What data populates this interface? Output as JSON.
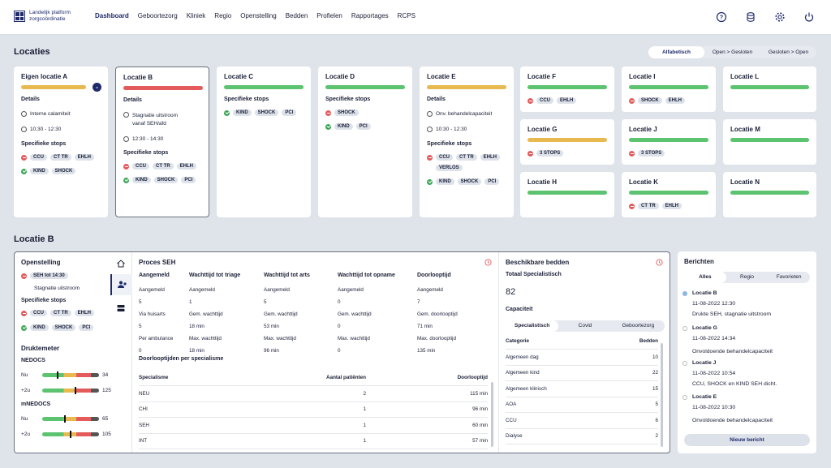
{
  "app": {
    "logo_line1": "Landelijk platform",
    "logo_line2": "zorgcoördinatie"
  },
  "nav": [
    "Dashboard",
    "Geboortezorg",
    "Kliniek",
    "Regio",
    "Openstelling",
    "Bedden",
    "Profielen",
    "Rapportages",
    "RCPS"
  ],
  "locaties": {
    "title": "Locaties",
    "sort": [
      "Alfabetisch",
      "Open > Gesloten",
      "Gesloten > Open"
    ]
  },
  "cardA": {
    "title": "Eigen locatie A",
    "details": "Details",
    "detail": "Interne calamiteit",
    "time": "10:30 - 12:30",
    "stops_label": "Specifieke stops",
    "closed": [
      "CCU",
      "CT TR",
      "EHLH"
    ],
    "open": [
      "KIND",
      "SHOCK"
    ]
  },
  "cardB": {
    "title": "Locatie B",
    "details": "Details",
    "detail1": "Stagnatie uitstroom",
    "detail2": "vanaf SEH/afd",
    "time": "12:30 - 14:30",
    "stops_label": "Specifieke stops",
    "closed": [
      "CCU",
      "CT TR",
      "EHLH"
    ],
    "open": [
      "KIND",
      "SHOCK",
      "PCI"
    ]
  },
  "cardC": {
    "title": "Locatie C",
    "stops_label": "Specifieke stops",
    "open": [
      "KIND",
      "SHOCK",
      "PCI"
    ]
  },
  "cardD": {
    "title": "Locatie D",
    "stops_label": "Specifieke stops",
    "closed": [
      "SHOCK"
    ],
    "open": [
      "KIND",
      "PCI"
    ]
  },
  "cardE": {
    "title": "Locatie E",
    "details": "Details",
    "detail": "Onv. behandelcapaciteit",
    "time": "10:30 - 12:30",
    "stops_label": "Specifieke stops",
    "closed": [
      "CCU",
      "CT TR",
      "EHLH"
    ],
    "closed2": [
      "VERLOS"
    ],
    "open": [
      "KIND",
      "SHOCK",
      "PCI"
    ]
  },
  "small": {
    "F": {
      "title": "Locatie F",
      "chips": [
        "CCU",
        "EHLH"
      ]
    },
    "G": {
      "title": "Locatie G",
      "chips": [
        "3 STOPS"
      ]
    },
    "H": {
      "title": "Locatie H"
    },
    "I": {
      "title": "Locatie I",
      "chips": [
        "SHOCK",
        "EHLH"
      ]
    },
    "J": {
      "title": "Locatie J",
      "chips": [
        "3 STOPS"
      ]
    },
    "K": {
      "title": "Locatie K",
      "chips": [
        "CT TR",
        "EHLH"
      ]
    },
    "L": {
      "title": "Locatie L"
    },
    "M": {
      "title": "Locatie M"
    },
    "N": {
      "title": "Locatie N"
    }
  },
  "detail": {
    "title": "Locatie B",
    "openstelling": {
      "title": "Openstelling",
      "seh": "SEH tot 14:30",
      "reason": "Stagnatie uitstroom",
      "stops_label": "Specifieke stops",
      "closed": [
        "CCU",
        "CT TR",
        "EHLH"
      ],
      "open": [
        "KIND",
        "SHOCK",
        "PCI"
      ]
    },
    "druktemeter": {
      "title": "Druktemeter",
      "nedocs": "NEDOCS",
      "mnedocs": "mNEDOCS",
      "rows": [
        {
          "label": "Nu",
          "value": "34"
        },
        {
          "label": "+2u",
          "value": "125"
        },
        {
          "label": "Nu",
          "value": "65"
        },
        {
          "label": "+2u",
          "value": "105"
        }
      ]
    },
    "proces": {
      "title": "Proces SEH",
      "cols": [
        {
          "h": "Aangemeld",
          "r": [
            "Aangemeld",
            "5",
            "Via huisarts",
            "5",
            "Per ambulance",
            "0"
          ]
        },
        {
          "h": "Wachttijd tot triage",
          "r": [
            "Aangemeld",
            "1",
            "Gem. wachttijd",
            "18 min",
            "Max. wachttijd",
            "18 min"
          ]
        },
        {
          "h": "Wachttijd tot arts",
          "r": [
            "Aangemeld",
            "5",
            "Gem. wachttijd",
            "53 min",
            "Max. wachttijd",
            "96 min"
          ]
        },
        {
          "h": "Wachttijd tot opname",
          "r": [
            "Aangemeld",
            "0",
            "Gem. wachttijd",
            "0",
            "Max. wachttijd",
            "0"
          ]
        },
        {
          "h": "Doorlooptijd",
          "r": [
            "Aangemeld",
            "7",
            "Gem. doorlooptijd",
            "71 min",
            "Max. doorlooptijd",
            "135 min"
          ]
        }
      ],
      "sub": "Doorlooptijden per specialisme",
      "th": [
        "Specialisme",
        "Aantal patiënten",
        "Doorlooptijd"
      ],
      "rows": [
        [
          "NEU",
          "2",
          "115 min"
        ],
        [
          "CHI",
          "1",
          "96 min"
        ],
        [
          "SEH",
          "1",
          "60 min"
        ],
        [
          "INT",
          "1",
          "57 min"
        ]
      ]
    },
    "bedden": {
      "title": "Beschikbare bedden",
      "totaal_label": "Totaal Specialistisch",
      "totaal": "82",
      "cap": "Capaciteit",
      "tabs": [
        "Specialistisch",
        "Covid",
        "Geboortezorg"
      ],
      "th": [
        "Categorie",
        "Bedden"
      ],
      "rows": [
        [
          "Algemeen dag",
          "10"
        ],
        [
          "Algemeen kind",
          "22"
        ],
        [
          "Algemeen klinisch",
          "15"
        ],
        [
          "AOA",
          "5"
        ],
        [
          "CCU",
          "6"
        ],
        [
          "Dialyse",
          "2"
        ]
      ]
    }
  },
  "berichten": {
    "title": "Berichten",
    "tabs": [
      "Alles",
      "Regio",
      "Favorieten"
    ],
    "items": [
      {
        "loc": "Locatie B",
        "date": "11-08-2022 12:30",
        "text": "Drukte SEH, stagnatie uitstroom"
      },
      {
        "loc": "Locatie G",
        "date": "11-08-2022 14:34",
        "text": "Onvoldoende behandelcapaciteit"
      },
      {
        "loc": "Locatie J",
        "date": "11-08-2022 10:54",
        "text": "CCU, SHOCK en KIND SEH dicht."
      },
      {
        "loc": "Locatie E",
        "date": "11-08-2022 10:30",
        "text": "Onvoldoende behandelcapaciteit"
      }
    ],
    "new": "Nieuw bericht"
  }
}
